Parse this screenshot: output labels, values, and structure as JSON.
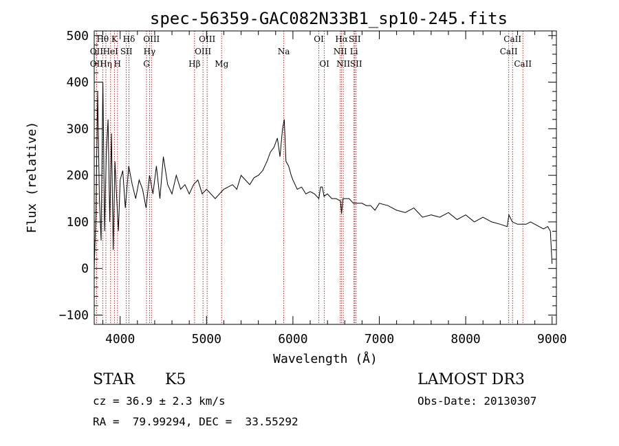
{
  "chart_data": {
    "type": "line",
    "title": "spec-56359-GAC082N33B1_sp10-245.fits",
    "xlabel": "Wavelength (Å)",
    "ylabel": "Flux (relative)",
    "xlim": [
      3700,
      9050
    ],
    "ylim": [
      -120,
      510
    ],
    "x_ticks": [
      4000,
      5000,
      6000,
      7000,
      8000,
      9000
    ],
    "x_tick_labels": [
      "4000",
      "5000",
      "6000",
      "7000",
      "8000",
      "9000"
    ],
    "y_ticks": [
      -100,
      0,
      100,
      200,
      300,
      400,
      500
    ],
    "y_tick_labels": [
      "−100",
      "0",
      "100",
      "200",
      "300",
      "400",
      "500"
    ],
    "series": [
      {
        "name": "flux",
        "color": "#000000",
        "x": [
          3700,
          3720,
          3740,
          3760,
          3780,
          3800,
          3820,
          3840,
          3860,
          3880,
          3900,
          3920,
          3940,
          3960,
          3980,
          4000,
          4030,
          4060,
          4100,
          4140,
          4180,
          4220,
          4260,
          4300,
          4340,
          4380,
          4420,
          4460,
          4500,
          4550,
          4600,
          4650,
          4700,
          4750,
          4800,
          4850,
          4900,
          4950,
          5000,
          5050,
          5100,
          5150,
          5200,
          5250,
          5300,
          5350,
          5400,
          5450,
          5500,
          5550,
          5600,
          5650,
          5700,
          5740,
          5780,
          5820,
          5850,
          5880,
          5900,
          5920,
          5950,
          5980,
          6000,
          6050,
          6100,
          6150,
          6200,
          6250,
          6300,
          6320,
          6340,
          6360,
          6400,
          6450,
          6500,
          6550,
          6563,
          6580,
          6600,
          6650,
          6700,
          6750,
          6800,
          6850,
          6900,
          6950,
          7000,
          7100,
          7200,
          7300,
          7400,
          7500,
          7600,
          7700,
          7800,
          7900,
          8000,
          8100,
          8200,
          8300,
          8400,
          8480,
          8500,
          8540,
          8600,
          8662,
          8700,
          8750,
          8800,
          8850,
          8900,
          8950,
          8980,
          9000
        ],
        "values": [
          0,
          120,
          380,
          150,
          60,
          400,
          80,
          250,
          320,
          100,
          290,
          40,
          230,
          150,
          80,
          190,
          210,
          130,
          220,
          180,
          150,
          190,
          170,
          130,
          200,
          160,
          220,
          150,
          240,
          180,
          160,
          200,
          170,
          180,
          160,
          180,
          190,
          160,
          170,
          160,
          150,
          160,
          170,
          175,
          180,
          170,
          200,
          190,
          180,
          195,
          200,
          210,
          230,
          250,
          260,
          280,
          240,
          300,
          320,
          230,
          220,
          200,
          190,
          170,
          175,
          160,
          165,
          160,
          150,
          175,
          175,
          155,
          160,
          150,
          150,
          145,
          118,
          150,
          150,
          150,
          140,
          140,
          140,
          135,
          135,
          125,
          140,
          135,
          125,
          120,
          130,
          110,
          115,
          110,
          120,
          105,
          115,
          100,
          110,
          100,
          95,
          90,
          115,
          100,
          95,
          95,
          95,
          100,
          95,
          90,
          85,
          90,
          80,
          10
        ]
      }
    ],
    "emission_lines": [
      {
        "label": "OII",
        "wavelength": 3727,
        "row": 2
      },
      {
        "label": "OII",
        "wavelength": 3727,
        "row": 3
      },
      {
        "label": "Hθ",
        "wavelength": 3798,
        "row": 1
      },
      {
        "label": "Hη",
        "wavelength": 3835,
        "row": 3
      },
      {
        "label": "HeI",
        "wavelength": 3889,
        "row": 2
      },
      {
        "label": "K",
        "wavelength": 3934,
        "row": 1
      },
      {
        "label": "H",
        "wavelength": 3969,
        "row": 3
      },
      {
        "label": "SII",
        "wavelength": 4072,
        "row": 2
      },
      {
        "label": "Hδ",
        "wavelength": 4102,
        "row": 1
      },
      {
        "label": "Hγ",
        "wavelength": 4340,
        "row": 2
      },
      {
        "label": "G",
        "wavelength": 4305,
        "row": 3
      },
      {
        "label": "OIII",
        "wavelength": 4363,
        "row": 1
      },
      {
        "label": "Hβ",
        "wavelength": 4861,
        "row": 3
      },
      {
        "label": "OIII",
        "wavelength": 4959,
        "row": 2
      },
      {
        "label": "OIII",
        "wavelength": 5007,
        "row": 1
      },
      {
        "label": "Mg",
        "wavelength": 5175,
        "row": 3
      },
      {
        "label": "Na",
        "wavelength": 5894,
        "row": 2
      },
      {
        "label": "OI",
        "wavelength": 6300,
        "row": 1
      },
      {
        "label": "OI",
        "wavelength": 6364,
        "row": 3
      },
      {
        "label": "NII",
        "wavelength": 6548,
        "row": 2
      },
      {
        "label": "Hα",
        "wavelength": 6563,
        "row": 1
      },
      {
        "label": "NII",
        "wavelength": 6583,
        "row": 3
      },
      {
        "label": "Li",
        "wavelength": 6707,
        "row": 2
      },
      {
        "label": "SII",
        "wavelength": 6716,
        "row": 1
      },
      {
        "label": "SII",
        "wavelength": 6731,
        "row": 3
      },
      {
        "label": "CaII",
        "wavelength": 8498,
        "row": 2
      },
      {
        "label": "CaII",
        "wavelength": 8542,
        "row": 1
      },
      {
        "label": "CaII",
        "wavelength": 8662,
        "row": 3
      }
    ],
    "line_color": "#b22222",
    "grid": false
  },
  "info": {
    "class_label": "STAR",
    "subclass": "K5",
    "survey": "LAMOST DR3",
    "cz": "cz = 36.9 ± 2.3 km/s",
    "obs_date": "Obs-Date: 20130307",
    "coords": "RA =  79.99294, DEC =  33.55292"
  }
}
